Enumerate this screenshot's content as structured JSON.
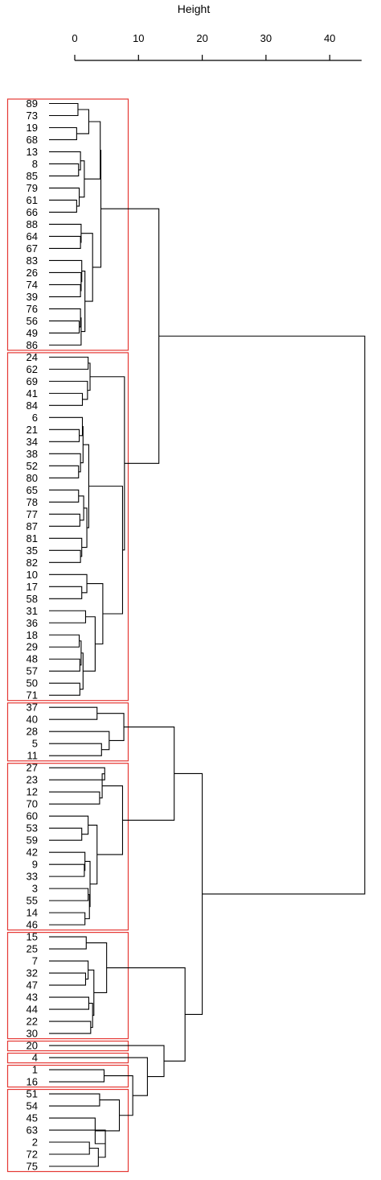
{
  "axis": {
    "title": "Height",
    "ticks": [
      0,
      10,
      20,
      30,
      40
    ],
    "range": [
      0,
      45
    ]
  },
  "colors": {
    "cluster_box": "#e53935",
    "branch": "#000000"
  },
  "leaves": [
    "89",
    "73",
    "19",
    "68",
    "13",
    "8",
    "85",
    "79",
    "61",
    "66",
    "88",
    "64",
    "67",
    "83",
    "26",
    "74",
    "39",
    "76",
    "56",
    "49",
    "86",
    "24",
    "62",
    "69",
    "41",
    "84",
    "6",
    "21",
    "34",
    "38",
    "52",
    "80",
    "65",
    "78",
    "77",
    "87",
    "81",
    "35",
    "82",
    "10",
    "17",
    "58",
    "31",
    "36",
    "18",
    "29",
    "48",
    "57",
    "50",
    "71",
    "37",
    "40",
    "28",
    "5",
    "11",
    "27",
    "23",
    "12",
    "70",
    "60",
    "53",
    "59",
    "42",
    "9",
    "33",
    "3",
    "55",
    "14",
    "46",
    "15",
    "25",
    "7",
    "32",
    "47",
    "43",
    "44",
    "22",
    "30",
    "20",
    "4",
    "1",
    "16",
    "51",
    "54",
    "45",
    "63",
    "2",
    "72",
    "75"
  ],
  "cluster_boxes": [
    {
      "first": 0,
      "last": 20
    },
    {
      "first": 21,
      "last": 49
    },
    {
      "first": 50,
      "last": 54
    },
    {
      "first": 55,
      "last": 68
    },
    {
      "first": 69,
      "last": 77
    },
    {
      "first": 78,
      "last": 78
    },
    {
      "first": 79,
      "last": 79
    },
    {
      "first": 80,
      "last": 81
    },
    {
      "first": 82,
      "last": 88
    }
  ],
  "merges": [
    {
      "id": "m1",
      "a": "L0",
      "b": "L1",
      "h": 0.5
    },
    {
      "id": "m2",
      "a": "L2",
      "b": "L3",
      "h": 0.3
    },
    {
      "id": "m3",
      "a": "m1",
      "b": "m2",
      "h": 2.2
    },
    {
      "id": "m4",
      "a": "L5",
      "b": "L6",
      "h": 0.6
    },
    {
      "id": "m5",
      "a": "L4",
      "b": "m4",
      "h": 0.9
    },
    {
      "id": "m6",
      "a": "L8",
      "b": "L9",
      "h": 0.3
    },
    {
      "id": "m7",
      "a": "L7",
      "b": "m6",
      "h": 0.7
    },
    {
      "id": "m8",
      "a": "m5",
      "b": "m7",
      "h": 1.5
    },
    {
      "id": "m9",
      "a": "m3",
      "b": "m8",
      "h": 4.0
    },
    {
      "id": "m10",
      "a": "L11",
      "b": "L12",
      "h": 0.9
    },
    {
      "id": "m11",
      "a": "L10",
      "b": "m10",
      "h": 1.0
    },
    {
      "id": "m12",
      "a": "L15",
      "b": "L16",
      "h": 0.9
    },
    {
      "id": "m13",
      "a": "L14",
      "b": "m12",
      "h": 1.0
    },
    {
      "id": "m14",
      "a": "L13",
      "b": "m13",
      "h": 1.1
    },
    {
      "id": "m15",
      "a": "L18",
      "b": "L19",
      "h": 0.7
    },
    {
      "id": "m16",
      "a": "L17",
      "b": "m15",
      "h": 0.9
    },
    {
      "id": "m17",
      "a": "m16",
      "b": "L20",
      "h": 1.0
    },
    {
      "id": "m18",
      "a": "m14",
      "b": "m17",
      "h": 1.6
    },
    {
      "id": "m19",
      "a": "m11",
      "b": "m18",
      "h": 2.8
    },
    {
      "id": "m20",
      "a": "m9",
      "b": "m19",
      "h": 4.1
    },
    {
      "id": "m21",
      "a": "L21",
      "b": "L22",
      "h": 2.1
    },
    {
      "id": "m22",
      "a": "L24",
      "b": "L25",
      "h": 1.2
    },
    {
      "id": "m23",
      "a": "L23",
      "b": "m22",
      "h": 2.0
    },
    {
      "id": "m24",
      "a": "m21",
      "b": "m23",
      "h": 2.4
    },
    {
      "id": "m25",
      "a": "L27",
      "b": "L28",
      "h": 0.7
    },
    {
      "id": "m26",
      "a": "L26",
      "b": "m25",
      "h": 1.2
    },
    {
      "id": "m27",
      "a": "L30",
      "b": "L31",
      "h": 0.6
    },
    {
      "id": "m28",
      "a": "L29",
      "b": "m27",
      "h": 0.9
    },
    {
      "id": "m29",
      "a": "m26",
      "b": "m28",
      "h": 1.3
    },
    {
      "id": "m30",
      "a": "L32",
      "b": "L33",
      "h": 0.6
    },
    {
      "id": "m31",
      "a": "L34",
      "b": "L35",
      "h": 0.8
    },
    {
      "id": "m32",
      "a": "m30",
      "b": "m31",
      "h": 1.4
    },
    {
      "id": "m33",
      "a": "L37",
      "b": "L38",
      "h": 0.9
    },
    {
      "id": "m34",
      "a": "L36",
      "b": "m33",
      "h": 1.1
    },
    {
      "id": "m35",
      "a": "m32",
      "b": "m34",
      "h": 1.9
    },
    {
      "id": "m36",
      "a": "m29",
      "b": "m35",
      "h": 2.2
    },
    {
      "id": "m37",
      "a": "L40",
      "b": "L41",
      "h": 1.1
    },
    {
      "id": "m38",
      "a": "L39",
      "b": "m37",
      "h": 1.9
    },
    {
      "id": "m39",
      "a": "L42",
      "b": "L43",
      "h": 1.7
    },
    {
      "id": "m40",
      "a": "L44",
      "b": "L45",
      "h": 0.7
    },
    {
      "id": "m41",
      "a": "L46",
      "b": "L47",
      "h": 0.8
    },
    {
      "id": "m42",
      "a": "m40",
      "b": "m41",
      "h": 1.0
    },
    {
      "id": "m43",
      "a": "L48",
      "b": "L49",
      "h": 0.8
    },
    {
      "id": "m44",
      "a": "m42",
      "b": "m43",
      "h": 1.3
    },
    {
      "id": "m45",
      "a": "m39",
      "b": "m44",
      "h": 3.2
    },
    {
      "id": "m46",
      "a": "m38",
      "b": "m45",
      "h": 4.4
    },
    {
      "id": "m47",
      "a": "m36",
      "b": "m46",
      "h": 7.5
    },
    {
      "id": "m48",
      "a": "m24",
      "b": "m47",
      "h": 7.8
    },
    {
      "id": "m49",
      "a": "m20",
      "b": "m48",
      "h": 13.2
    },
    {
      "id": "m50",
      "a": "L50",
      "b": "L51",
      "h": 3.5
    },
    {
      "id": "m51",
      "a": "L53",
      "b": "L54",
      "h": 4.2
    },
    {
      "id": "m52",
      "a": "L52",
      "b": "m51",
      "h": 5.4
    },
    {
      "id": "m53",
      "a": "m50",
      "b": "m52",
      "h": 7.7
    },
    {
      "id": "m54",
      "a": "L55",
      "b": "L56",
      "h": 4.7
    },
    {
      "id": "m55",
      "a": "L57",
      "b": "L58",
      "h": 3.9
    },
    {
      "id": "m56",
      "a": "m54",
      "b": "m55",
      "h": 4.3
    },
    {
      "id": "m57",
      "a": "L60",
      "b": "L61",
      "h": 1.1
    },
    {
      "id": "m58",
      "a": "L59",
      "b": "m57",
      "h": 2.1
    },
    {
      "id": "m59",
      "a": "L63",
      "b": "L64",
      "h": 1.5
    },
    {
      "id": "m60",
      "a": "L62",
      "b": "m59",
      "h": 1.6
    },
    {
      "id": "m61",
      "a": "L65",
      "b": "L66",
      "h": 2.1
    },
    {
      "id": "m62",
      "a": "L67",
      "b": "L68",
      "h": 1.6
    },
    {
      "id": "m63",
      "a": "m61",
      "b": "m62",
      "h": 2.3
    },
    {
      "id": "m64",
      "a": "m60",
      "b": "m63",
      "h": 2.4
    },
    {
      "id": "m65",
      "a": "m58",
      "b": "m64",
      "h": 3.5
    },
    {
      "id": "m66",
      "a": "m56",
      "b": "m65",
      "h": 7.5
    },
    {
      "id": "m67",
      "a": "m53",
      "b": "m66",
      "h": 15.6
    },
    {
      "id": "m68",
      "a": "L69",
      "b": "L70",
      "h": 1.8
    },
    {
      "id": "m69",
      "a": "L72",
      "b": "L73",
      "h": 1.7
    },
    {
      "id": "m70",
      "a": "L71",
      "b": "m69",
      "h": 2.1
    },
    {
      "id": "m71",
      "a": "L74",
      "b": "L75",
      "h": 2.2
    },
    {
      "id": "m72",
      "a": "L76",
      "b": "L77",
      "h": 2.5
    },
    {
      "id": "m73",
      "a": "m71",
      "b": "m72",
      "h": 2.8
    },
    {
      "id": "m74",
      "a": "m70",
      "b": "m73",
      "h": 3.0
    },
    {
      "id": "m75",
      "a": "m68",
      "b": "m74",
      "h": 5.0
    },
    {
      "id": "m76",
      "a": "L80",
      "b": "L81",
      "h": 4.6
    },
    {
      "id": "m77",
      "a": "L82",
      "b": "L83",
      "h": 3.9
    },
    {
      "id": "m78",
      "a": "L86",
      "b": "L87",
      "h": 2.3
    },
    {
      "id": "m79",
      "a": "m78",
      "b": "L88",
      "h": 3.7
    },
    {
      "id": "m80",
      "a": "L85",
      "b": "m79",
      "h": 4.8
    },
    {
      "id": "m81",
      "a": "L84",
      "b": "m80",
      "h": 3.2
    },
    {
      "id": "m82",
      "a": "m77",
      "b": "m81",
      "h": 7.0
    },
    {
      "id": "m83",
      "a": "m76",
      "b": "m82",
      "h": 9.1
    },
    {
      "id": "m84",
      "a": "L79",
      "b": "m83",
      "h": 11.4
    },
    {
      "id": "m85",
      "a": "L78",
      "b": "m84",
      "h": 14.0
    },
    {
      "id": "m86",
      "a": "m75",
      "b": "m85",
      "h": 17.3
    },
    {
      "id": "m87",
      "a": "m67",
      "b": "m86",
      "h": 20.0
    },
    {
      "id": "m88",
      "a": "m49",
      "b": "m87",
      "h": 45.5
    }
  ]
}
